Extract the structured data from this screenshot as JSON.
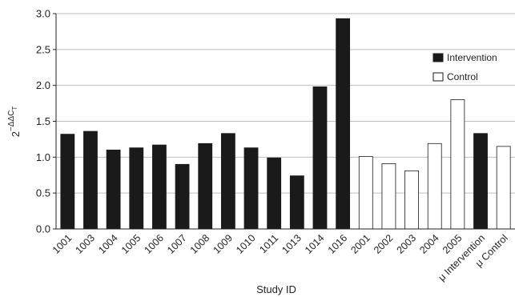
{
  "chart_data": {
    "type": "bar",
    "title": "",
    "xlabel": "Study ID",
    "ylabel_base": "2",
    "ylabel_exp_prefix": "−ΔΔC",
    "ylabel_exp_sub": "T",
    "ylim": [
      0,
      3.0
    ],
    "yticks": [
      "0.0",
      "0.5",
      "1.0",
      "1.5",
      "2.0",
      "2.5",
      "3.0"
    ],
    "grid": true,
    "legend_position": "right",
    "categories": [
      "1001",
      "1003",
      "1004",
      "1005",
      "1006",
      "1007",
      "1008",
      "1009",
      "1010",
      "1011",
      "1013",
      "1014",
      "1016",
      "2001",
      "2002",
      "2003",
      "2004",
      "2005",
      "μ Intervention",
      "μ Control"
    ],
    "values": [
      1.32,
      1.36,
      1.1,
      1.13,
      1.17,
      0.9,
      1.19,
      1.33,
      1.13,
      0.99,
      0.74,
      1.98,
      2.93,
      1.01,
      0.91,
      0.81,
      1.19,
      1.8,
      1.33,
      1.15
    ],
    "groups": [
      "Intervention",
      "Intervention",
      "Intervention",
      "Intervention",
      "Intervention",
      "Intervention",
      "Intervention",
      "Intervention",
      "Intervention",
      "Intervention",
      "Intervention",
      "Intervention",
      "Intervention",
      "Control",
      "Control",
      "Control",
      "Control",
      "Control",
      "Intervention",
      "Control"
    ],
    "legend": [
      {
        "name": "Intervention",
        "color": "#1a1a1a"
      },
      {
        "name": "Control",
        "color": "#ffffff"
      }
    ]
  }
}
